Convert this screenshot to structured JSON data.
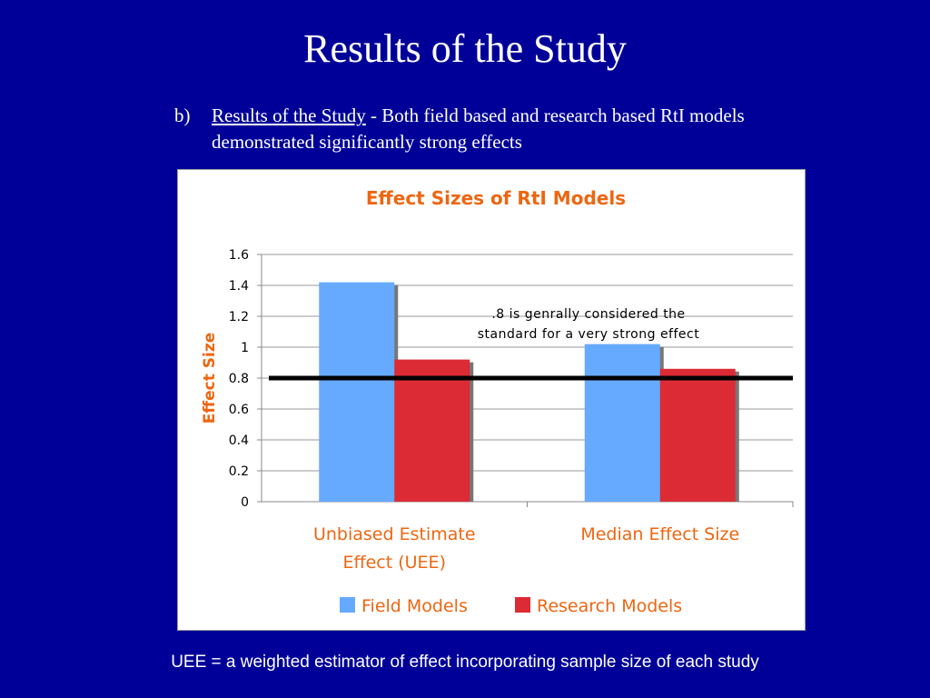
{
  "slide": {
    "title": "Results of the Study",
    "bullet_marker": "b)",
    "bullet_link": "Results of the Study",
    "bullet_rest": " - Both field based and research based RtI models demonstrated significantly strong effects",
    "footnote": "UEE = a weighted estimator of effect incorporating sample size of each study",
    "background_color": "#000099"
  },
  "chart_data": {
    "type": "bar",
    "title": "Effect Sizes of RtI Models",
    "ylabel": "Effect Size",
    "xlabel": "",
    "ylim": [
      0,
      1.6
    ],
    "yticks": [
      "0",
      "0.2",
      "0.4",
      "0.6",
      "0.8",
      "1",
      "1.2",
      "1.4",
      "1.6"
    ],
    "categories": [
      [
        "Unbiased Estimate",
        "Effect (UEE)"
      ],
      [
        "Median Effect Size"
      ]
    ],
    "series": [
      {
        "name": "Field Models",
        "values": [
          1.42,
          1.02
        ],
        "color": "#66aaff"
      },
      {
        "name": "Research Models",
        "values": [
          0.92,
          0.86
        ],
        "color": "#dd2b35"
      }
    ],
    "reference_line": {
      "value": 0.8,
      "color": "#000000"
    },
    "annotation": [
      ".8 is genrally considered the",
      "standard for a very strong effect"
    ],
    "accent_color": "#ee6611",
    "grid": true,
    "legend_position": "bottom"
  }
}
